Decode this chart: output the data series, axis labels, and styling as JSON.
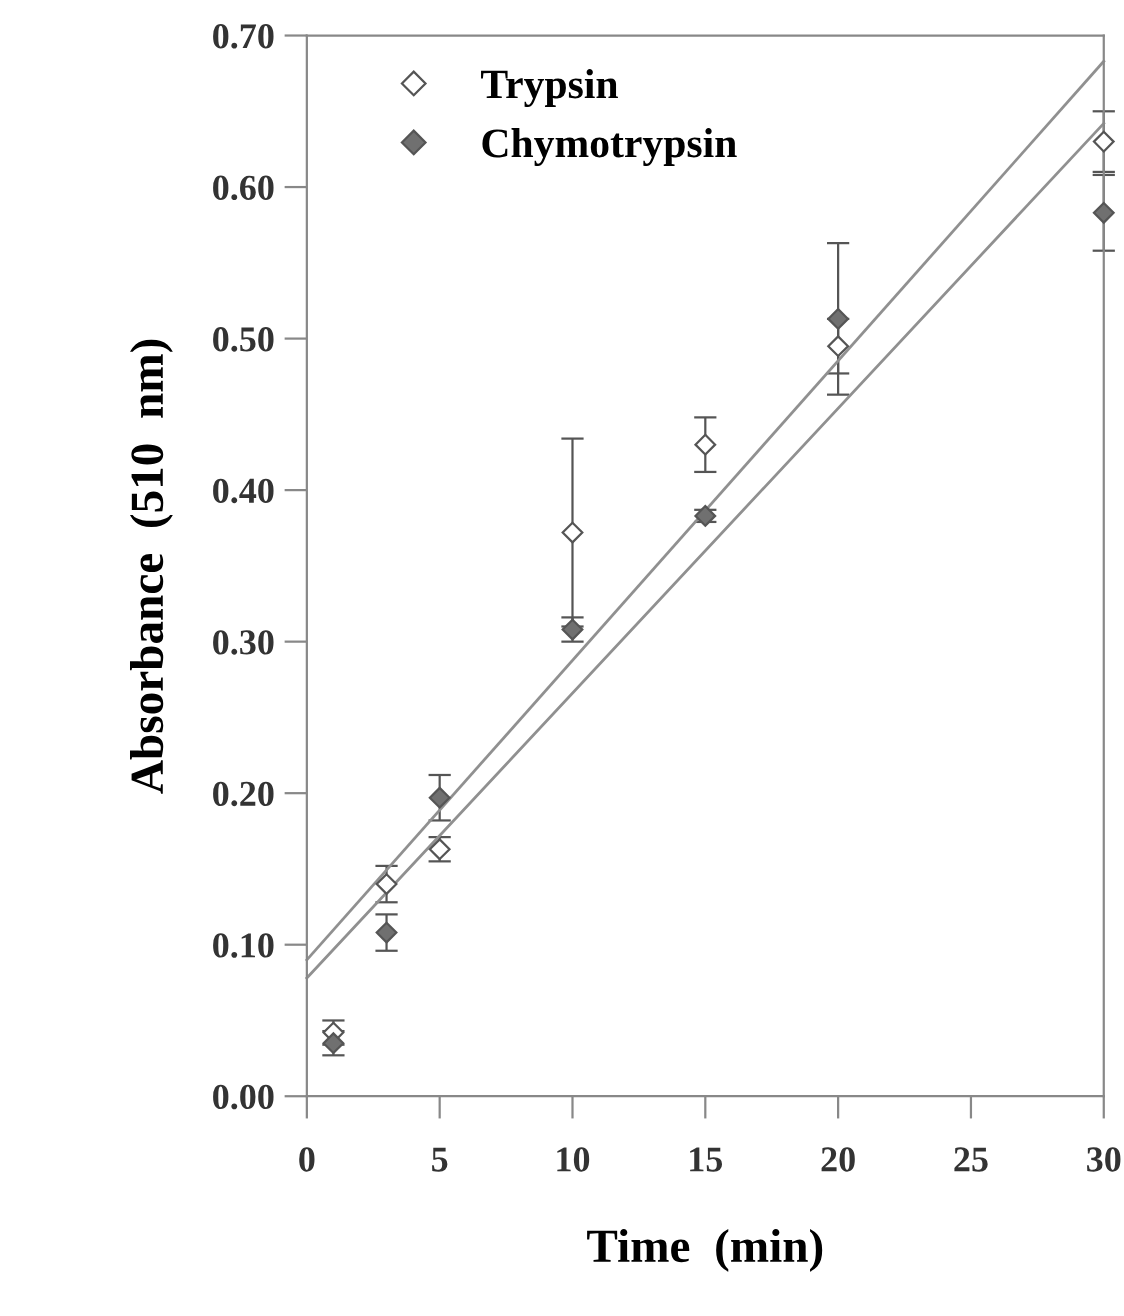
{
  "chart_data": {
    "type": "scatter",
    "xlabel": "Time  (min)",
    "ylabel": "Absorbance  (510  nm)",
    "marker": "diamond",
    "legend": "top left",
    "grid": false,
    "xlim": [
      0,
      30
    ],
    "ylim": [
      0,
      0.7
    ],
    "xticks": [
      0,
      5,
      10,
      15,
      20,
      25,
      30
    ],
    "yticks": [
      {
        "value": 0,
        "label": "0.00"
      },
      {
        "value": 0.1,
        "label": "0.10"
      },
      {
        "value": 0.2,
        "label": "0.20"
      },
      {
        "value": 0.3,
        "label": "0.30"
      },
      {
        "value": 0.4,
        "label": "0.40"
      },
      {
        "value": 0.5,
        "label": "0.50"
      },
      {
        "value": 0.6,
        "label": "0.60"
      },
      {
        "value": 0.7,
        "label": "0.70"
      }
    ],
    "series": [
      {
        "name": "Trypsin",
        "color": "#ffffff",
        "x": [
          1,
          3,
          5,
          10,
          15,
          20,
          30
        ],
        "values": [
          0.042,
          0.14,
          0.163,
          0.372,
          0.43,
          0.495,
          0.63
        ],
        "errors": [
          0.008,
          0.012,
          0.008,
          0.062,
          0.018,
          0.018,
          0.02
        ]
      },
      {
        "name": "Chymotrypsin",
        "color": "#707070",
        "x": [
          1,
          3,
          5,
          10,
          15,
          20,
          30
        ],
        "values": [
          0.035,
          0.108,
          0.197,
          0.308,
          0.383,
          0.513,
          0.583
        ],
        "errors": [
          0.008,
          0.012,
          0.015,
          0.008,
          0.004,
          0.05,
          0.025
        ]
      },
      {
        "type": "line",
        "color": "#909090",
        "marker": "none",
        "x": [
          0,
          30
        ],
        "values": [
          0.09,
          0.683
        ]
      },
      {
        "type": "line",
        "color": "#909090",
        "marker": "none",
        "x": [
          0,
          30
        ],
        "values": [
          0.078,
          0.642
        ]
      }
    ]
  }
}
